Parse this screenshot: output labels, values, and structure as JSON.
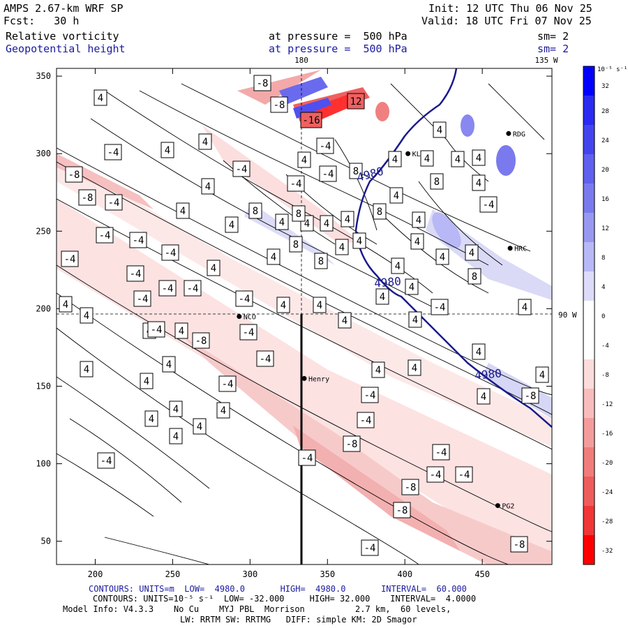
{
  "header": {
    "model": "AMPS 2.67-km WRF SP",
    "fcst_label": "Fcst:",
    "fcst_value": "30 h",
    "init": "Init: 12 UTC Thu 06 Nov 25",
    "valid": "Valid: 18 UTC Fri 07 Nov 25",
    "field1_name": "Relative vorticity",
    "field1_pressure": "at pressure =  500 hPa",
    "field1_smooth": "sm= 2",
    "field2_name": "Geopotential height",
    "field2_pressure": "at pressure =  500 hPa",
    "field2_smooth": "sm= 2"
  },
  "map": {
    "meridian_180": "180",
    "meridian_135w": "135 W",
    "parallel_90w": "90 W",
    "x_ticks": [
      "200",
      "250",
      "300",
      "350",
      "400",
      "450"
    ],
    "y_ticks": [
      "350",
      "300",
      "250",
      "200",
      "150",
      "100",
      "50"
    ],
    "x_range": [
      175,
      495
    ],
    "y_range": [
      35,
      355
    ],
    "stations": [
      {
        "name": "NCO",
        "x": 293,
        "y": 195
      },
      {
        "name": "Henry",
        "x": 335,
        "y": 155
      },
      {
        "name": "PG2",
        "x": 460,
        "y": 73
      },
      {
        "name": "RDG",
        "x": 467,
        "y": 313
      },
      {
        "name": "HRC",
        "x": 468,
        "y": 239
      },
      {
        "name": "KLM",
        "x": 402,
        "y": 300
      }
    ],
    "height_contour_label": "4980",
    "vorticity_labels": [
      "4",
      "-4",
      "8",
      "-8",
      "12",
      "-12",
      "16",
      "-16"
    ]
  },
  "colorbar": {
    "units": "10⁻⁵ s⁻¹",
    "labels": [
      "32",
      "28",
      "24",
      "20",
      "16",
      "12",
      "8",
      "4",
      "0",
      "-4",
      "-8",
      "-12",
      "-16",
      "-20",
      "-24",
      "-28",
      "-32"
    ],
    "colors": [
      "#0000ff",
      "#2a2af2",
      "#4444ee",
      "#6060ee",
      "#7a7aee",
      "#9898f0",
      "#b8b8f6",
      "#dcdcfa",
      "#ffffff",
      "#ffffff",
      "#fbdcdc",
      "#f8bcbc",
      "#f49c9c",
      "#f07c7c",
      "#ee5c5c",
      "#f03636",
      "#ff0000"
    ]
  },
  "footer": {
    "line1_a": "CONTOURS: UNITS=m",
    "line1_b": "LOW=  4980.0",
    "line1_c": "HIGH=  4980.0",
    "line1_d": "INTERVAL=  60.000",
    "line2": "CONTOURS: UNITS=10⁻⁵ s⁻¹  LOW= -32.000     HIGH= 32.000    INTERVAL=  4.0000",
    "line3": "Model Info: V4.3.3    No Cu    MYJ PBL  Morrison          2.7 km,  60 levels,",
    "line4": "LW: RRTM SW: RRTMG   DIFF: simple KM: 2D Smagor"
  }
}
